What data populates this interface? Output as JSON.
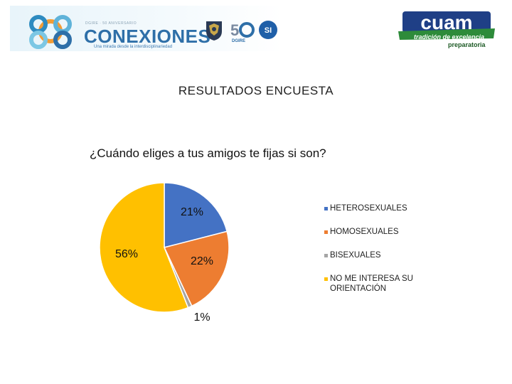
{
  "header": {
    "conexiones": {
      "tagline_top": "DGIRE · 50 ANIVERSARIO",
      "title": "CONEXIONES",
      "subtitle": "Una mirada desde la interdisciplinariedad"
    },
    "dgire_label": "DGIRE",
    "si_label": "SI",
    "cuam": {
      "name": "cuam",
      "subtitle": "tradición de excelencia",
      "level": "preparatoria"
    }
  },
  "page_title": "RESULTADOS ENCUESTA",
  "colors": {
    "heterosexuales": "#4472c4",
    "homosexuales": "#ed7d31",
    "bisexuales": "#a5a5a5",
    "no_me_interesa": "#ffc000"
  },
  "chart_data": {
    "type": "pie",
    "title": "¿Cuándo eliges a tus amigos te fijas si son?",
    "categories": [
      "HETEROSEXUALES",
      "HOMOSEXUALES",
      "BISEXUALES",
      "NO ME INTERESA SU ORIENTACIÓN"
    ],
    "values": [
      21,
      22,
      1,
      56
    ],
    "labels": [
      "21%",
      "22%",
      "1%",
      "56%"
    ],
    "colors": [
      "#4472c4",
      "#ed7d31",
      "#a5a5a5",
      "#ffc000"
    ],
    "start_angle_deg": 0,
    "direction": "clockwise",
    "legend_position": "right"
  }
}
